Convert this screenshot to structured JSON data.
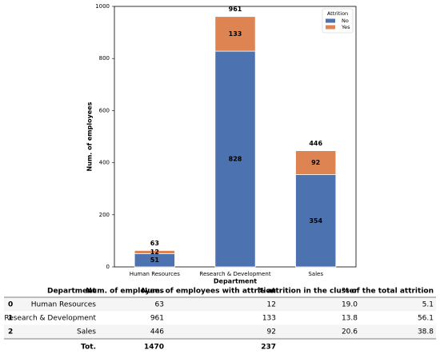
{
  "chart_data": {
    "type": "stacked_bar",
    "categories": [
      "Human Resources",
      "Research & Development",
      "Sales"
    ],
    "series": [
      {
        "name": "No",
        "color": "#4c72b0",
        "values": [
          51,
          828,
          354
        ]
      },
      {
        "name": "Yes",
        "color": "#dd8452",
        "values": [
          12,
          133,
          92
        ]
      }
    ],
    "total_labels": [
      63,
      961,
      446
    ],
    "xlabel": "Department",
    "ylabel": "Num. of employees",
    "legend_title": "Attrition",
    "legend": "upper right",
    "ylim": [
      0,
      1000
    ],
    "yticks": [
      0,
      200,
      400,
      600,
      800,
      1000
    ],
    "grid": false
  },
  "table": {
    "columns": [
      "Department",
      "Num. of employees",
      "Num. of employees with attrition",
      "% attrition in the cluster",
      "% of the total attrition"
    ],
    "rows": [
      [
        "0",
        "Human Resources",
        "63",
        "12",
        "19.0",
        "5.1"
      ],
      [
        "1",
        "Research & Development",
        "961",
        "133",
        "13.8",
        "56.1"
      ],
      [
        "2",
        "Sales",
        "446",
        "92",
        "20.6",
        "38.8"
      ]
    ],
    "total": [
      "Tot.",
      "1470",
      "237"
    ]
  }
}
